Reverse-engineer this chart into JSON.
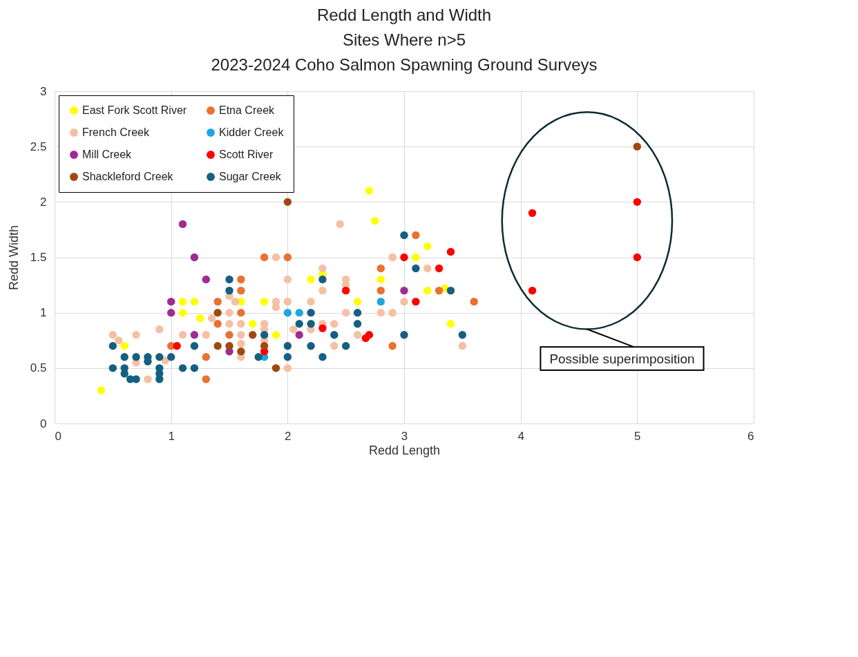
{
  "chart_data": {
    "type": "scatter",
    "title": "Redd Length and Width\nSites Where n>5\n2023-2024 Coho Salmon Spawning Ground Surveys",
    "xlabel": "Redd Length",
    "ylabel": "Redd Width",
    "xlim": [
      0,
      6
    ],
    "ylim": [
      0,
      3
    ],
    "xticks": [
      0,
      1,
      2,
      3,
      4,
      5,
      6
    ],
    "yticks": [
      0,
      0.5,
      1,
      1.5,
      2,
      2.5,
      3
    ],
    "grid": true,
    "legend": "top left",
    "marker": "circle",
    "annotations": [
      "Possible superimposition"
    ],
    "series": [
      {
        "name": "East Fork Scott River",
        "color": "#ffff00",
        "x": [
          0.4,
          0.6,
          1.1,
          1.2,
          1.1,
          1.25,
          1.6,
          1.7,
          1.8,
          1.9,
          2.2,
          2.3,
          2.8,
          2.6,
          3.4,
          3.2,
          3.35,
          3.1,
          3.2,
          2.7,
          2.75
        ],
        "values": [
          0.3,
          0.7,
          1.1,
          1.1,
          1.0,
          0.95,
          1.1,
          0.9,
          1.1,
          0.8,
          1.3,
          1.35,
          1.3,
          1.1,
          0.9,
          1.2,
          1.22,
          1.5,
          1.6,
          2.1,
          1.83
        ]
      },
      {
        "name": "Etna Creek",
        "color": "#e97132",
        "x": [
          1.8,
          2.0,
          1.6,
          1.6,
          1.4,
          1.6,
          1.4,
          1.5,
          1.0,
          1.3,
          1.3,
          2.8,
          3.1,
          2.8,
          3.3,
          3.6,
          2.9
        ],
        "values": [
          1.5,
          1.5,
          1.3,
          1.2,
          1.1,
          1.0,
          0.9,
          0.8,
          0.7,
          0.6,
          0.4,
          1.4,
          1.7,
          1.2,
          1.2,
          1.1,
          0.7
        ]
      },
      {
        "name": "French Creek",
        "color": "#f5c0a3",
        "x": [
          0.5,
          0.55,
          0.7,
          0.9,
          0.7,
          0.8,
          0.95,
          1.1,
          1.3,
          1.35,
          1.5,
          1.55,
          1.5,
          1.5,
          1.6,
          1.6,
          1.6,
          1.6,
          1.8,
          1.8,
          1.8,
          1.9,
          1.9,
          2.0,
          2.0,
          1.9,
          2.0,
          2.45,
          2.3,
          2.5,
          2.5,
          2.3,
          2.2,
          2.5,
          2.8,
          2.9,
          2.9,
          3.2,
          3.0,
          2.3,
          2.4,
          2.05,
          2.2,
          2.6,
          2.4,
          3.5
        ],
        "values": [
          0.8,
          0.75,
          0.8,
          0.85,
          0.55,
          0.4,
          0.57,
          0.8,
          0.8,
          0.95,
          1.15,
          1.1,
          1.0,
          0.9,
          0.9,
          0.8,
          0.72,
          0.6,
          0.9,
          0.75,
          0.85,
          1.1,
          1.05,
          1.1,
          1.3,
          1.5,
          0.5,
          1.8,
          1.4,
          1.3,
          1.25,
          1.2,
          1.1,
          1.0,
          1.0,
          1.0,
          1.5,
          1.4,
          1.1,
          0.9,
          0.9,
          0.85,
          0.85,
          0.8,
          0.7,
          0.7
        ]
      },
      {
        "name": "Kidder Creek",
        "color": "#1ea6e0",
        "x": [
          2.0,
          2.1,
          2.8,
          1.8
        ],
        "values": [
          1.0,
          1.0,
          1.1,
          0.6
        ]
      },
      {
        "name": "Mill Creek",
        "color": "#a02b93",
        "x": [
          1.1,
          1.2,
          1.3,
          1.0,
          1.0,
          1.2,
          1.5,
          2.1,
          3.0
        ],
        "values": [
          1.8,
          1.5,
          1.3,
          1.1,
          1.0,
          0.8,
          0.65,
          0.8,
          1.2
        ]
      },
      {
        "name": "Scott River",
        "color": "#ff0000",
        "x": [
          1.05,
          1.8,
          2.3,
          2.5,
          2.7,
          2.67,
          3.0,
          3.1,
          3.3,
          3.4,
          4.1,
          4.1,
          5.0,
          5.0
        ],
        "values": [
          0.7,
          0.65,
          0.86,
          1.2,
          0.8,
          0.77,
          1.5,
          1.1,
          1.4,
          1.55,
          1.9,
          1.2,
          2.0,
          1.5
        ]
      },
      {
        "name": "Shackleford Creek",
        "color": "#a0490f",
        "x": [
          2.0,
          5.0,
          1.4,
          1.4,
          1.5,
          1.6,
          1.7,
          1.8,
          1.9
        ],
        "values": [
          2.0,
          2.5,
          1.0,
          0.7,
          0.7,
          0.65,
          0.8,
          0.7,
          0.5
        ]
      },
      {
        "name": "Sugar Creek",
        "color": "#156082",
        "x": [
          0.5,
          0.5,
          0.6,
          0.6,
          0.6,
          0.65,
          0.7,
          0.7,
          0.8,
          0.8,
          0.9,
          0.9,
          0.9,
          0.9,
          1.0,
          1.1,
          1.2,
          1.2,
          1.5,
          1.5,
          1.8,
          1.75,
          2.0,
          2.0,
          2.3,
          2.2,
          2.6,
          2.1,
          2.2,
          2.6,
          2.4,
          2.2,
          2.5,
          2.3,
          3.0,
          3.1,
          3.4,
          3.0,
          3.5
        ],
        "values": [
          0.7,
          0.5,
          0.6,
          0.5,
          0.45,
          0.4,
          0.4,
          0.6,
          0.6,
          0.56,
          0.6,
          0.5,
          0.45,
          0.4,
          0.6,
          0.5,
          0.5,
          0.7,
          1.3,
          1.2,
          0.8,
          0.6,
          0.7,
          0.6,
          1.3,
          1.0,
          1.0,
          0.9,
          0.9,
          0.9,
          0.8,
          0.7,
          0.7,
          0.6,
          1.7,
          1.4,
          1.2,
          0.8,
          0.8
        ]
      }
    ]
  }
}
